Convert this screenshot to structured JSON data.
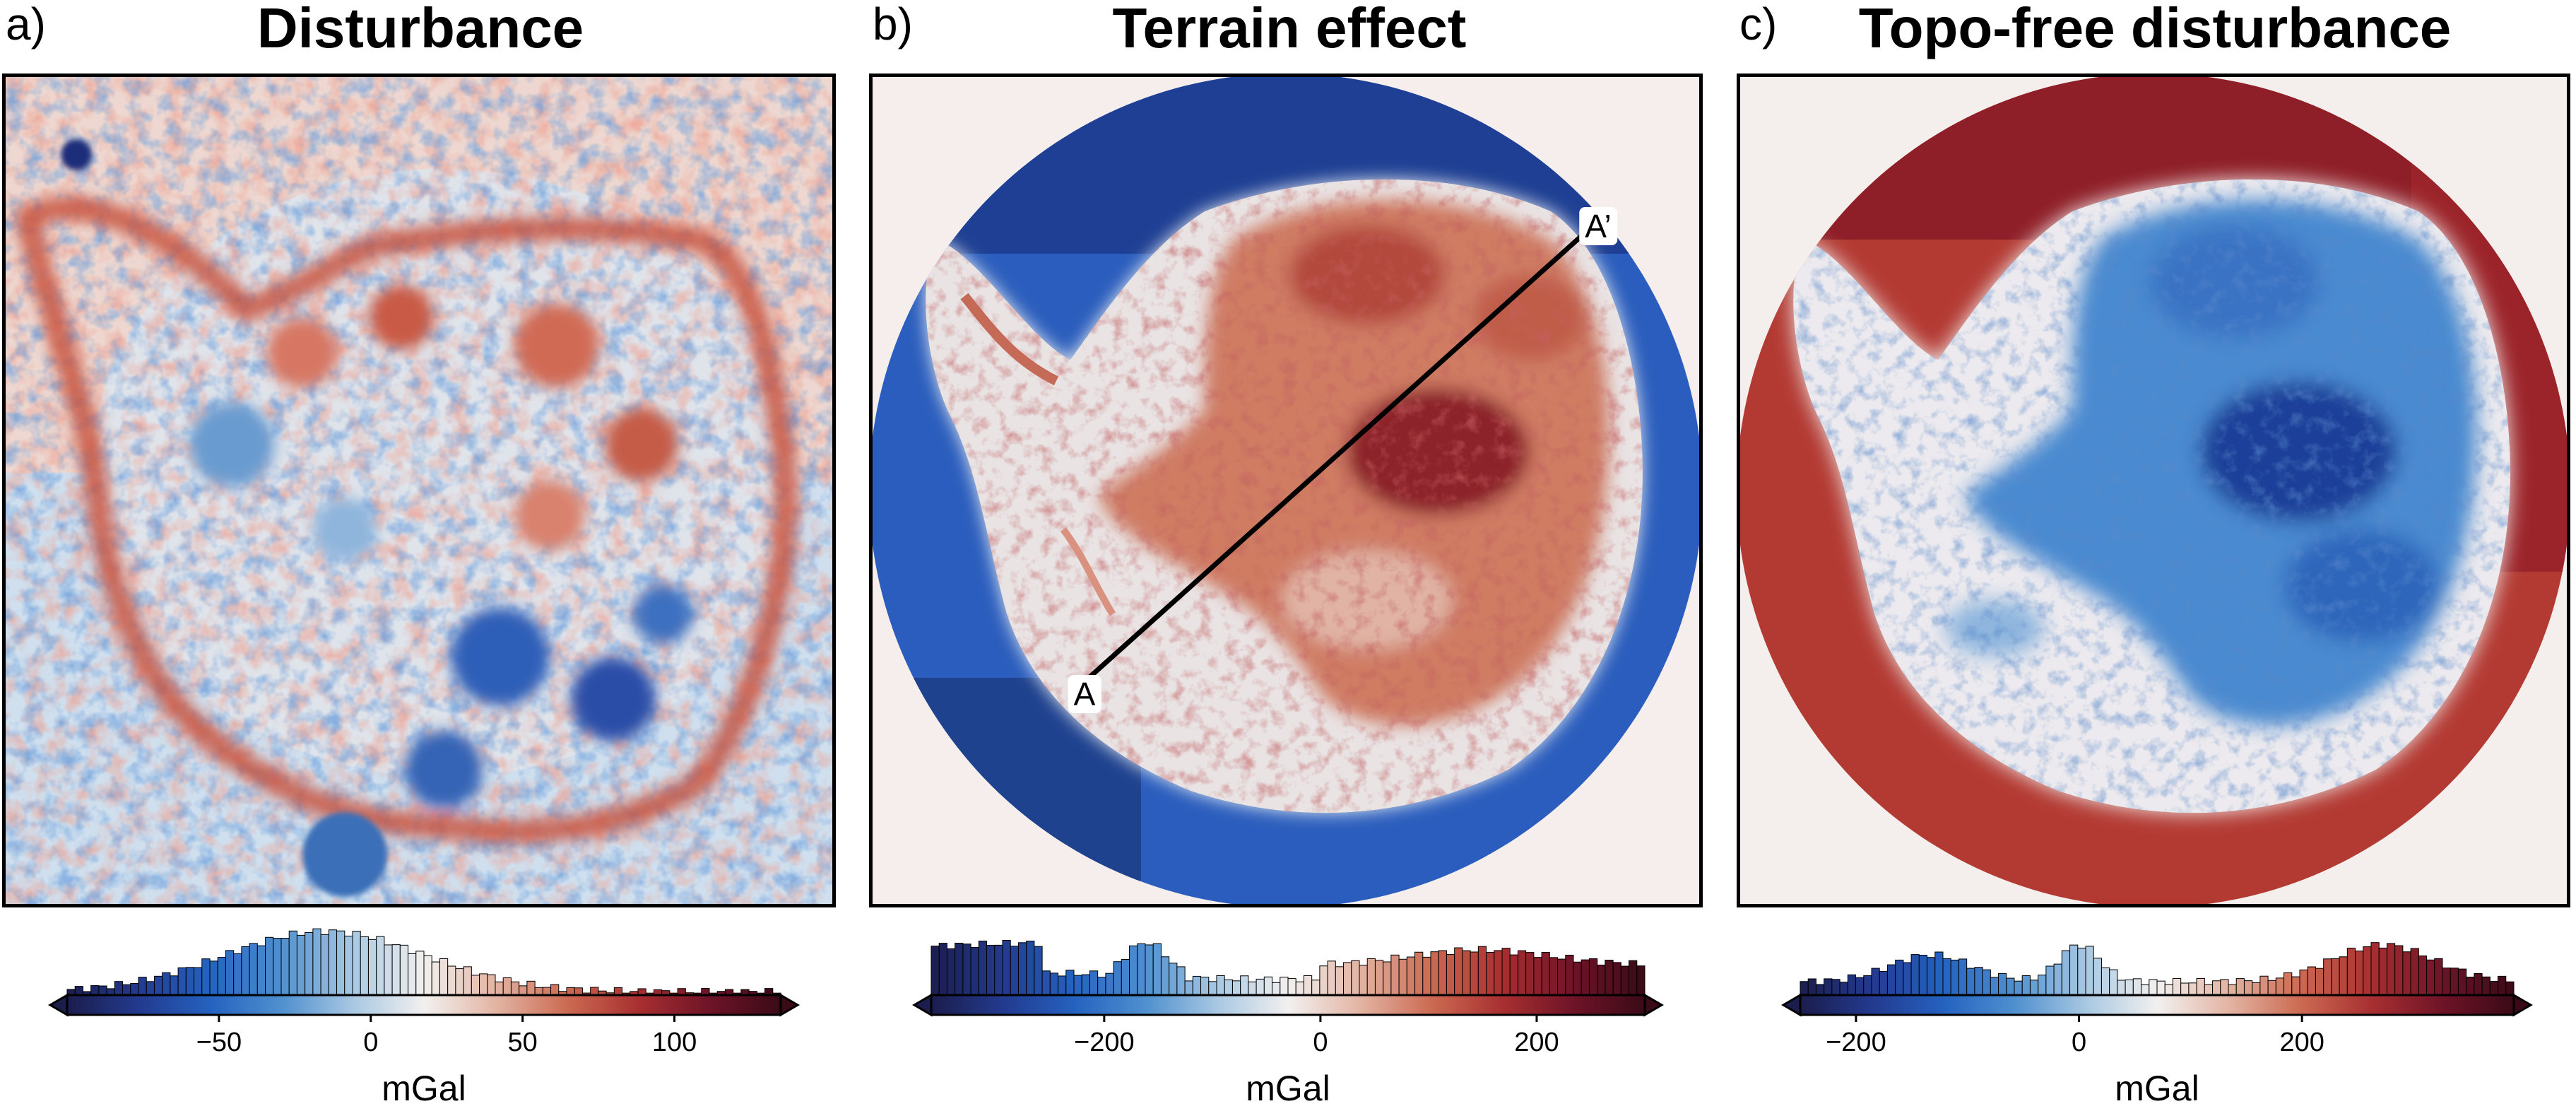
{
  "panels": [
    {
      "letter": "a)",
      "title": "Disturbance",
      "colormap": [
        "#1b1d4d",
        "#233a8f",
        "#2462c0",
        "#4f90cf",
        "#a9c8e2",
        "#f2f0ef",
        "#e3b4a3",
        "#cc6a52",
        "#a82f31",
        "#6e1327",
        "#3a0a17"
      ],
      "colorbar": {
        "min": -100,
        "max": 135,
        "ticks": [
          -50,
          0,
          50,
          100
        ],
        "tick_labels": [
          "−50",
          "0",
          "50",
          "100"
        ],
        "unit": "mGal"
      }
    },
    {
      "letter": "b)",
      "title": "Terrain effect",
      "profile": {
        "start_label": "A",
        "end_label": "A’"
      },
      "colormap": [
        "#1b1d4d",
        "#233a8f",
        "#2462c0",
        "#4f90cf",
        "#a9c8e2",
        "#f2f0ef",
        "#e3b4a3",
        "#cc6a52",
        "#a82f31",
        "#6e1327",
        "#3a0a17"
      ],
      "colorbar": {
        "min": -360,
        "max": 300,
        "ticks": [
          -200,
          0,
          200
        ],
        "tick_labels": [
          "−200",
          "0",
          "200"
        ],
        "unit": "mGal"
      }
    },
    {
      "letter": "c)",
      "title": "Topo-free disturbance",
      "colormap": [
        "#1b1d4d",
        "#233a8f",
        "#2462c0",
        "#4f90cf",
        "#a9c8e2",
        "#f2f0ef",
        "#e3b4a3",
        "#cc6a52",
        "#a82f31",
        "#6e1327",
        "#3a0a17"
      ],
      "colorbar": {
        "min": -250,
        "max": 390,
        "ticks": [
          -200,
          0,
          200
        ],
        "tick_labels": [
          "−200",
          "0",
          "200"
        ],
        "unit": "mGal"
      }
    }
  ]
}
